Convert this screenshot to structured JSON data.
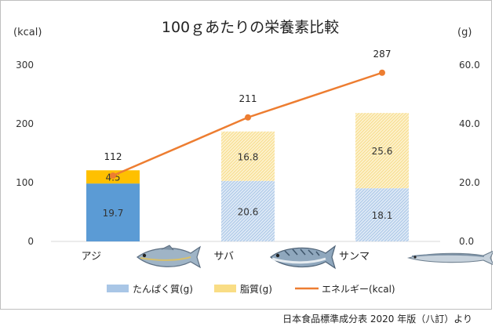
{
  "chart_data": {
    "type": "bar+line",
    "title": "100ｇあたりの栄養素比較",
    "categories": [
      "アジ",
      "サバ",
      "サンマ"
    ],
    "left_axis": {
      "unit": "(kcal)",
      "ticks": [
        "0",
        "100",
        "200",
        "300"
      ],
      "range": [
        0,
        320
      ]
    },
    "right_axis": {
      "unit": "(g)",
      "ticks": [
        "0.0",
        "20.0",
        "40.0",
        "60.0"
      ],
      "range": [
        0,
        64
      ]
    },
    "series": [
      {
        "name": "たんぱく質(g)",
        "type": "stacked-bar",
        "axis": "right",
        "values": [
          19.7,
          20.6,
          18.1
        ],
        "labels": [
          "19.7",
          "20.6",
          "18.1"
        ],
        "color_solid": "#5b9bd5",
        "color_pattern": "#b4cde9"
      },
      {
        "name": "脂質(g)",
        "type": "stacked-bar",
        "axis": "right",
        "values": [
          4.5,
          16.8,
          25.6
        ],
        "labels": [
          "4.5",
          "16.8",
          "25.6"
        ],
        "color_solid": "#ffc000",
        "color_pattern": "#fbe3a0"
      },
      {
        "name": "エネルギー(kcal)",
        "type": "line",
        "axis": "left",
        "values": [
          112,
          211,
          287
        ],
        "labels": [
          "112",
          "211",
          "287"
        ],
        "color": "#ed7d31"
      }
    ],
    "legend_position": "bottom",
    "grid": false
  },
  "source_note": "日本食品標準成分表 2020 年版（八訂）より",
  "icons": [
    "aji-fish-icon",
    "saba-fish-icon",
    "sanma-fish-icon"
  ]
}
